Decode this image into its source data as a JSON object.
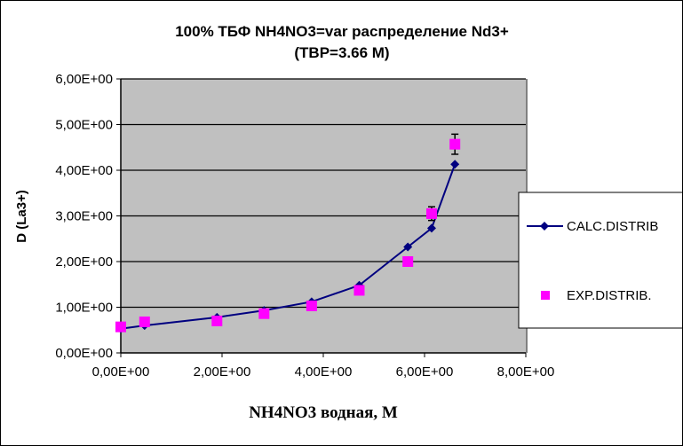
{
  "chart_data": {
    "type": "line",
    "title": [
      "100%  ТБФ  NH4NO3=var распределение Nd3+",
      "(TBP=3.66 M)"
    ],
    "xlabel": "NH4NO3 водная, М",
    "ylabel": "D (La3+)",
    "xlim": [
      0,
      8
    ],
    "ylim": [
      0,
      6
    ],
    "xticks": [
      "0,00E+00",
      "2,00E+00",
      "4,00E+00",
      "6,00E+00",
      "8,00E+00"
    ],
    "yticks": [
      "0,00E+00",
      "1,00E+00",
      "2,00E+00",
      "3,00E+00",
      "4,00E+00",
      "5,00E+00",
      "6,00E+00"
    ],
    "grid": "horizontal",
    "legend_position": "right",
    "series": [
      {
        "name": "CALC.DISTRIB",
        "style": "line-diamond",
        "color": "#000080",
        "x": [
          0.0,
          0.47,
          1.9,
          2.83,
          3.77,
          4.71,
          5.67,
          6.14,
          6.6
        ],
        "y": [
          0.53,
          0.6,
          0.78,
          0.93,
          1.12,
          1.48,
          2.32,
          2.73,
          4.13
        ]
      },
      {
        "name": "EXP.DISTRIB.",
        "style": "square",
        "color": "#FF00FF",
        "x": [
          0.0,
          0.47,
          1.9,
          2.83,
          3.77,
          4.71,
          5.67,
          6.14,
          6.6
        ],
        "y": [
          0.57,
          0.68,
          0.7,
          0.86,
          1.03,
          1.37,
          2.0,
          3.05,
          4.57
        ],
        "error": [
          0,
          0,
          0,
          0,
          0,
          0,
          0.1,
          0.15,
          0.22
        ]
      }
    ]
  }
}
